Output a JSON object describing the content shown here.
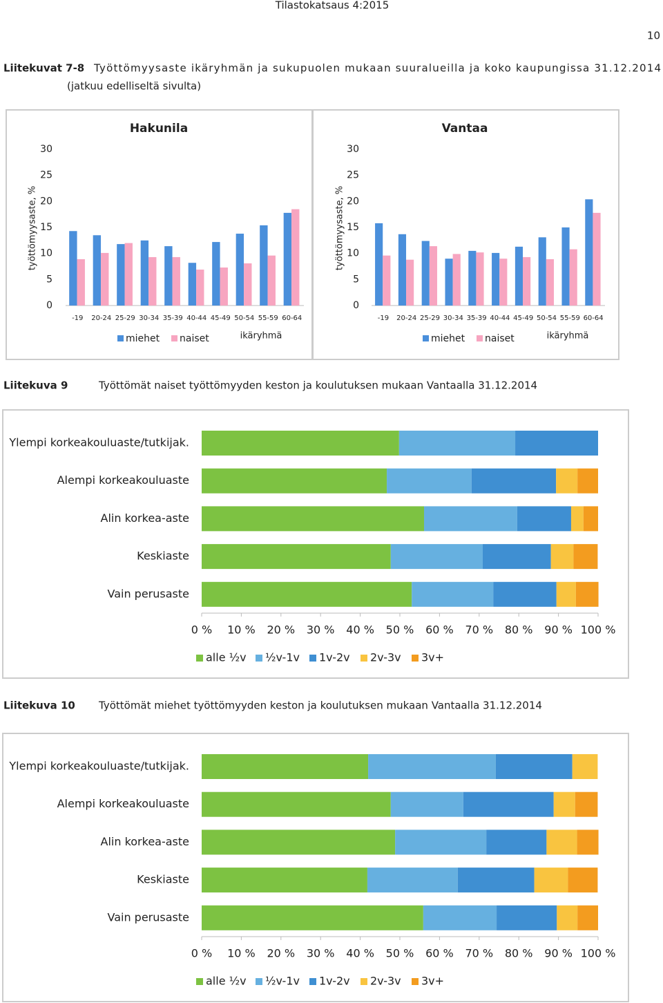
{
  "header": {
    "title": "Tilastokatsaus 4:2015",
    "page_number": "10"
  },
  "captions": [
    {
      "label": "Liitekuvat 7-8",
      "lines": [
        "Työttömyysaste ikäryhmän ja sukupuolen mukaan suuralueilla ja koko kaupungissa 31.12.2014",
        "(jatkuu edelliseltä sivulta)"
      ]
    },
    {
      "label": "Liitekuva 9",
      "lines": [
        "Työttömät naiset työttömyyden keston ja koulutuksen mukaan Vantaalla 31.12.2014"
      ]
    },
    {
      "label": "Liitekuva 10",
      "lines": [
        "Työttömät miehet työttömyyden keston ja koulutuksen mukaan Vantaalla 31.12.2014"
      ]
    }
  ],
  "chart_data": [
    {
      "type": "bar",
      "title": "Hakunila",
      "xlabel": "ikäryhmä",
      "ylabel": "työttömyysaste, %",
      "categories": [
        "-19",
        "20-24",
        "25-29",
        "30-34",
        "35-39",
        "40-44",
        "45-49",
        "50-54",
        "55-59",
        "60-64"
      ],
      "series": [
        {
          "name": "miehet",
          "color": "#4a8fdb",
          "values": [
            14.3,
            13.5,
            11.8,
            12.5,
            11.4,
            8.2,
            12.2,
            13.8,
            15.4,
            17.8
          ]
        },
        {
          "name": "naiset",
          "color": "#f7a5c0",
          "values": [
            8.9,
            10.1,
            12.0,
            9.3,
            9.3,
            6.9,
            7.3,
            8.1,
            9.6,
            18.5
          ]
        }
      ],
      "ylim": [
        0,
        30
      ],
      "yticks": [
        0,
        5,
        10,
        15,
        20,
        25,
        30
      ],
      "grid": false,
      "legend": "bottom"
    },
    {
      "type": "bar",
      "title": "Vantaa",
      "xlabel": "ikäryhmä",
      "ylabel": "työttömyysaste, %",
      "categories": [
        "-19",
        "20-24",
        "25-29",
        "30-34",
        "35-39",
        "40-44",
        "45-49",
        "50-54",
        "55-59",
        "60-64"
      ],
      "series": [
        {
          "name": "miehet",
          "color": "#4a8fdb",
          "values": [
            15.8,
            13.7,
            12.4,
            9.0,
            10.5,
            10.1,
            11.3,
            13.1,
            15.0,
            20.4
          ]
        },
        {
          "name": "naiset",
          "color": "#f7a5c0",
          "values": [
            9.6,
            8.8,
            11.4,
            9.9,
            10.2,
            9.0,
            9.3,
            8.9,
            10.8,
            17.8
          ]
        }
      ],
      "ylim": [
        0,
        30
      ],
      "yticks": [
        0,
        5,
        10,
        15,
        20,
        25,
        30
      ],
      "grid": false,
      "legend": "bottom"
    },
    {
      "type": "stacked_barh",
      "categories": [
        "Ylempi korkeakouluaste/tutkijak.",
        "Alempi korkeakouluaste",
        "Alin korkea-aste",
        "Keskiaste",
        "Vain perusaste"
      ],
      "series": [
        {
          "name": "alle ½v",
          "color": "#7dc242",
          "values": [
            49.8,
            46.7,
            56.1,
            47.7,
            53.0
          ]
        },
        {
          "name": "½v-1v",
          "color": "#66b0e0",
          "values": [
            29.3,
            21.4,
            23.5,
            23.2,
            20.6
          ]
        },
        {
          "name": "1v-2v",
          "color": "#3f8fd2",
          "values": [
            20.9,
            21.3,
            13.6,
            17.2,
            15.9
          ]
        },
        {
          "name": "2v-3v",
          "color": "#f9c440",
          "values": [
            0,
            5.4,
            3.1,
            5.7,
            4.9
          ]
        },
        {
          "name": "3v+",
          "color": "#f39c1f",
          "values": [
            0,
            5.2,
            3.7,
            6.1,
            5.7
          ]
        }
      ],
      "xlim": [
        0,
        100
      ],
      "xticks": [
        {
          "value": 0,
          "label": "0 %"
        },
        {
          "value": 10,
          "label": "10 %"
        },
        {
          "value": 20,
          "label": "20 %"
        },
        {
          "value": 30,
          "label": "30 %"
        },
        {
          "value": 40,
          "label": "40 %"
        },
        {
          "value": 50,
          "label": "50 %"
        },
        {
          "value": 60,
          "label": "60 %"
        },
        {
          "value": 70,
          "label": "70 %"
        },
        {
          "value": 80,
          "label": "80 %"
        },
        {
          "value": 90,
          "label": "90 %"
        },
        {
          "value": 100,
          "label": "100 %"
        }
      ],
      "legend": "bottom"
    },
    {
      "type": "stacked_barh",
      "categories": [
        "Ylempi korkeakouluaste/tutkijak.",
        "Alempi korkeakouluaste",
        "Alin korkea-aste",
        "Keskiaste",
        "Vain perusaste"
      ],
      "series": [
        {
          "name": "alle ½v",
          "color": "#7dc242",
          "values": [
            42.0,
            47.7,
            48.8,
            41.8,
            55.9
          ]
        },
        {
          "name": "½v-1v",
          "color": "#66b0e0",
          "values": [
            32.2,
            18.3,
            23.0,
            22.8,
            18.5
          ]
        },
        {
          "name": "1v-2v",
          "color": "#3f8fd2",
          "values": [
            19.3,
            22.8,
            15.2,
            19.3,
            15.2
          ]
        },
        {
          "name": "2v-3v",
          "color": "#f9c440",
          "values": [
            6.4,
            5.4,
            7.7,
            8.5,
            5.2
          ]
        },
        {
          "name": "3v+",
          "color": "#f39c1f",
          "values": [
            0,
            5.7,
            5.4,
            7.5,
            5.2
          ]
        }
      ],
      "xlim": [
        0,
        100
      ],
      "xticks": [
        {
          "value": 0,
          "label": "0 %"
        },
        {
          "value": 10,
          "label": "10 %"
        },
        {
          "value": 20,
          "label": "20 %"
        },
        {
          "value": 30,
          "label": "30 %"
        },
        {
          "value": 40,
          "label": "40 %"
        },
        {
          "value": 50,
          "label": "50 %"
        },
        {
          "value": 60,
          "label": "60 %"
        },
        {
          "value": 70,
          "label": "70 %"
        },
        {
          "value": 80,
          "label": "80 %"
        },
        {
          "value": 90,
          "label": "90 %"
        },
        {
          "value": 100,
          "label": "100 %"
        }
      ],
      "legend": "bottom"
    }
  ]
}
